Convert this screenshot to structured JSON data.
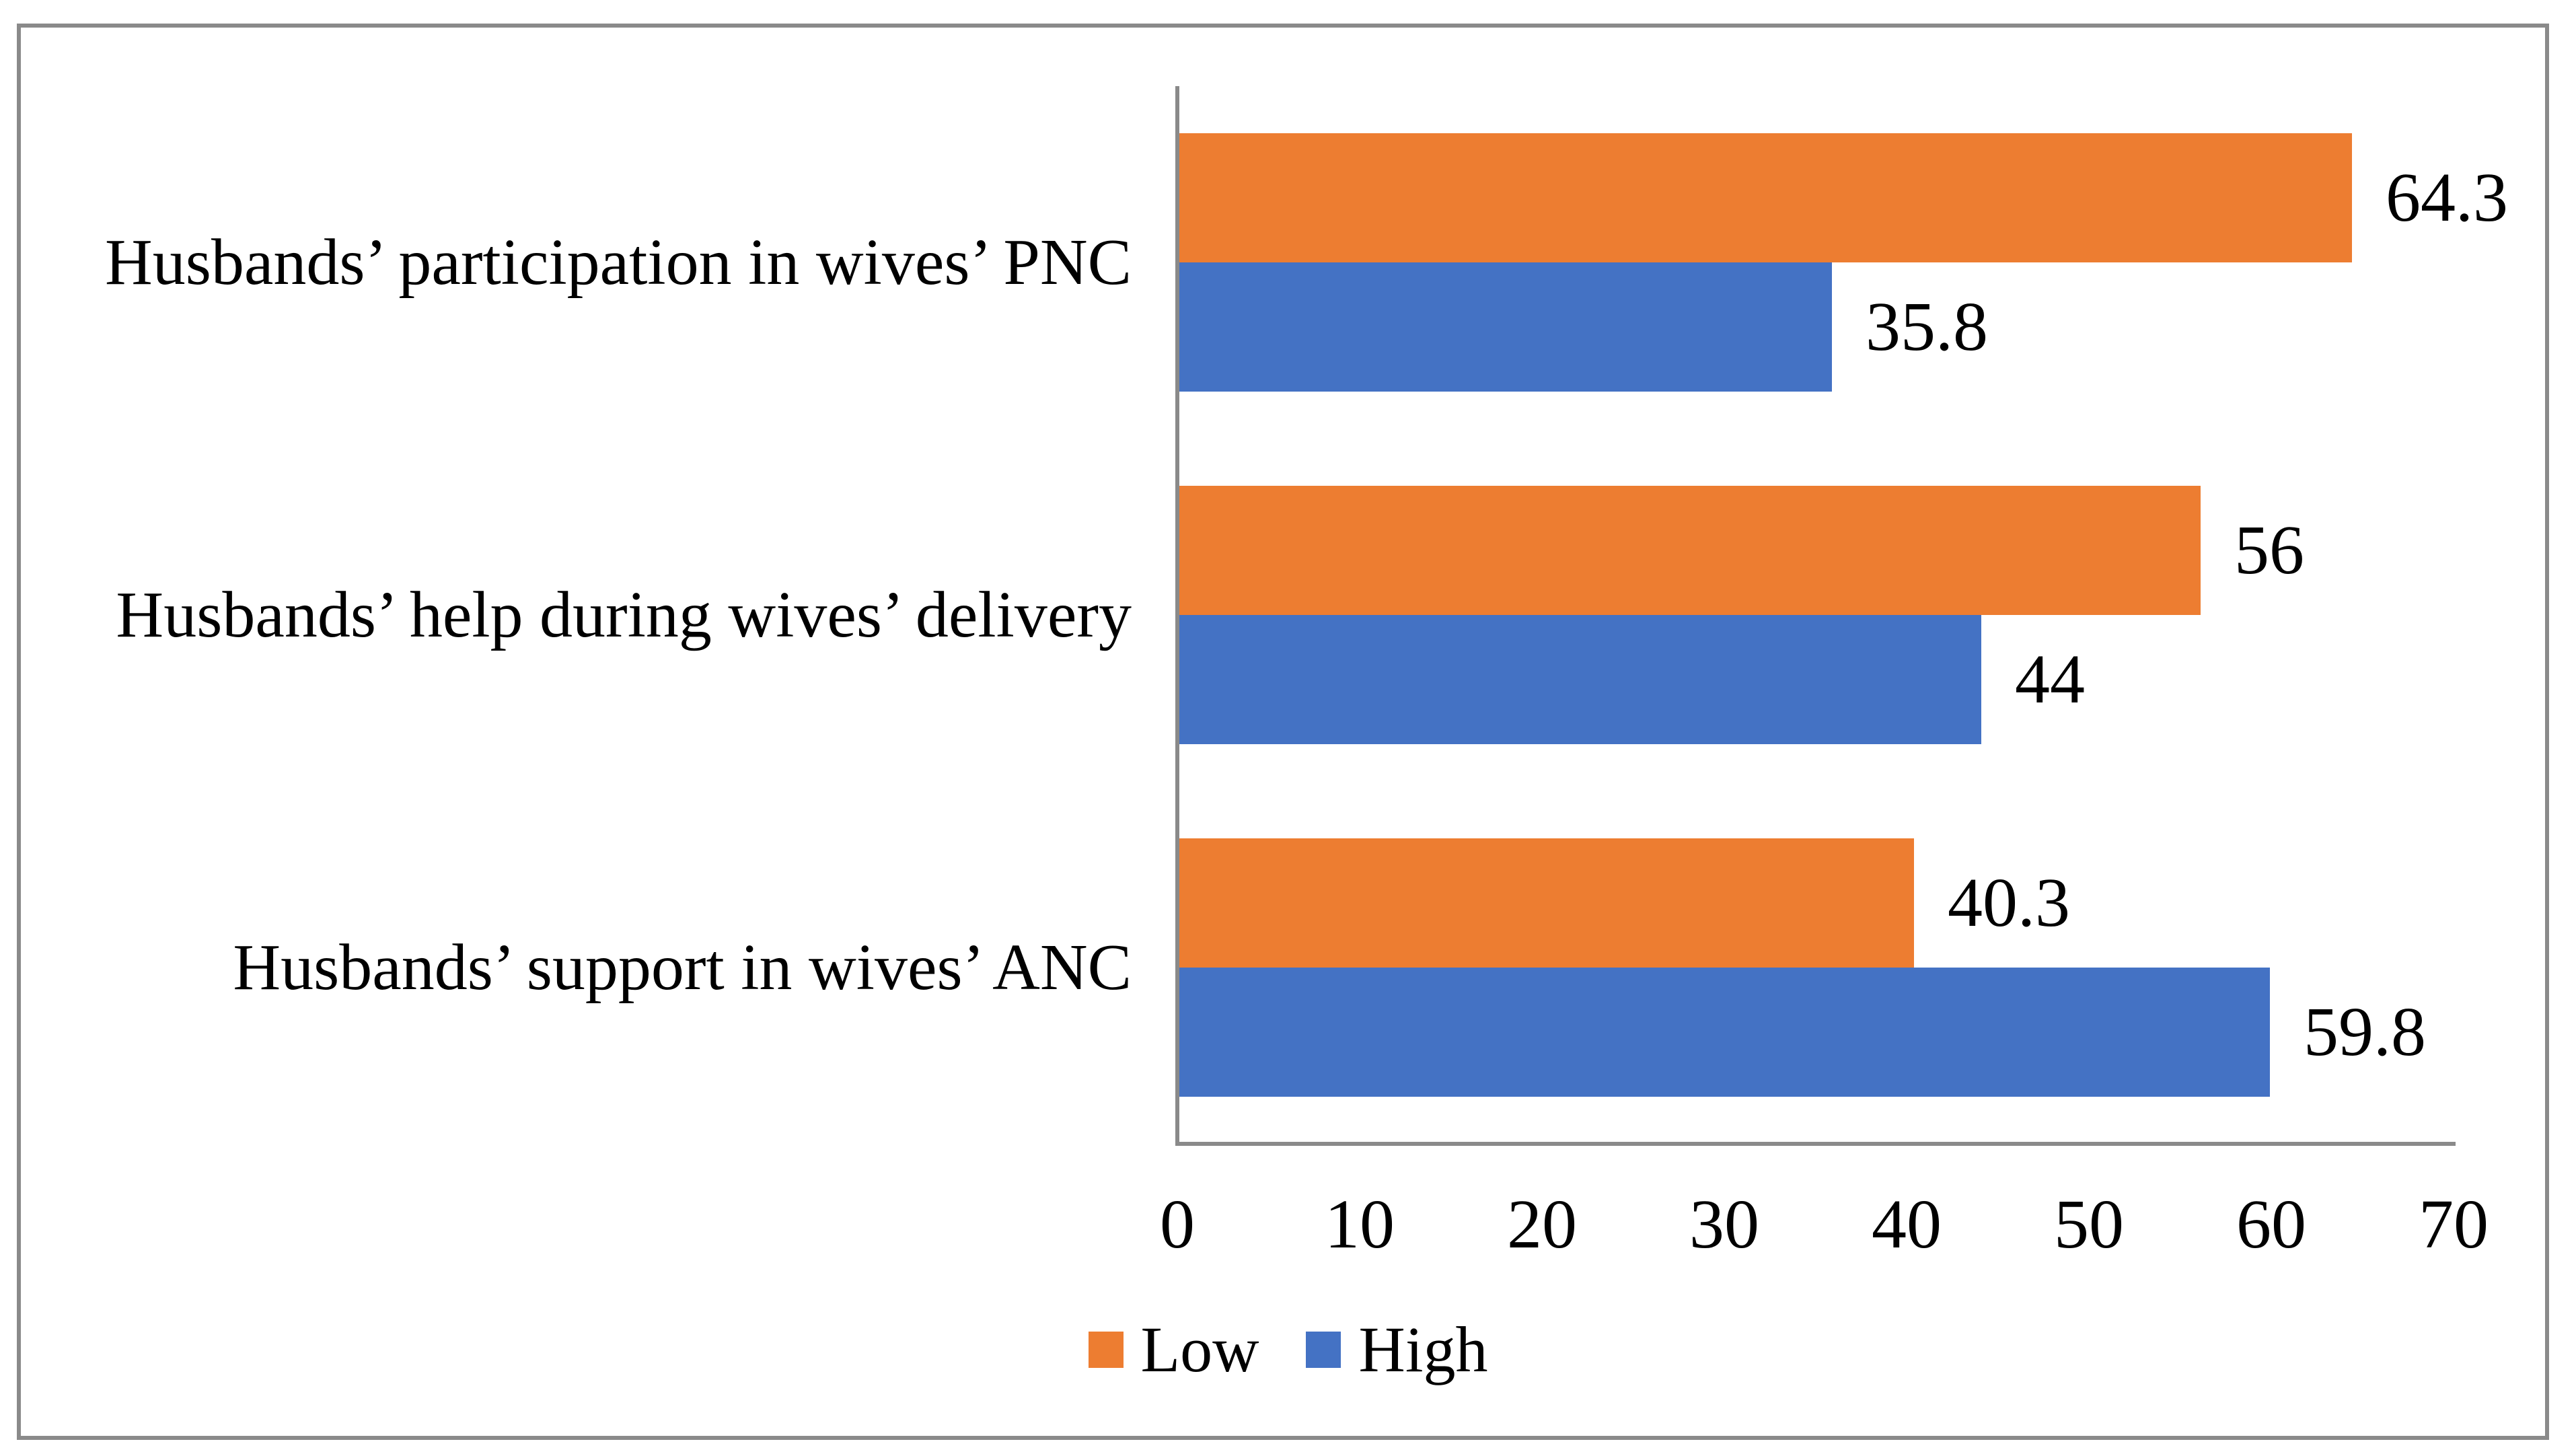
{
  "chart_data": {
    "type": "bar",
    "orientation": "horizontal",
    "title": "",
    "xlabel": "",
    "ylabel": "",
    "categories": [
      "Husbands’ participation in wives’ PNC",
      "Husbands’ help during wives’ delivery",
      "Husbands’ support in wives’ ANC"
    ],
    "series": [
      {
        "name": "Low",
        "color": "#ED7D31",
        "values": [
          64.3,
          56,
          40.3
        ],
        "labels": [
          "64.3",
          "56",
          "40.3"
        ]
      },
      {
        "name": "High",
        "color": "#4472C4",
        "values": [
          35.8,
          44,
          59.8
        ],
        "labels": [
          "35.8",
          "44",
          "59.8"
        ]
      }
    ],
    "xlim": [
      0,
      70
    ],
    "x_ticks": [
      0,
      10,
      20,
      30,
      40,
      50,
      60,
      70
    ],
    "x_tick_labels": [
      "0",
      "10",
      "20",
      "30",
      "40",
      "50",
      "60",
      "70"
    ],
    "grid": false,
    "legend_position": "bottom",
    "data_labels_shown": true
  },
  "colors": {
    "background": "#FFFFFF",
    "frame_border": "#8A8A8A",
    "axis_line": "#8A8A8A",
    "text": "#000000",
    "series_low": "#ED7D31",
    "series_high": "#4472C4"
  }
}
